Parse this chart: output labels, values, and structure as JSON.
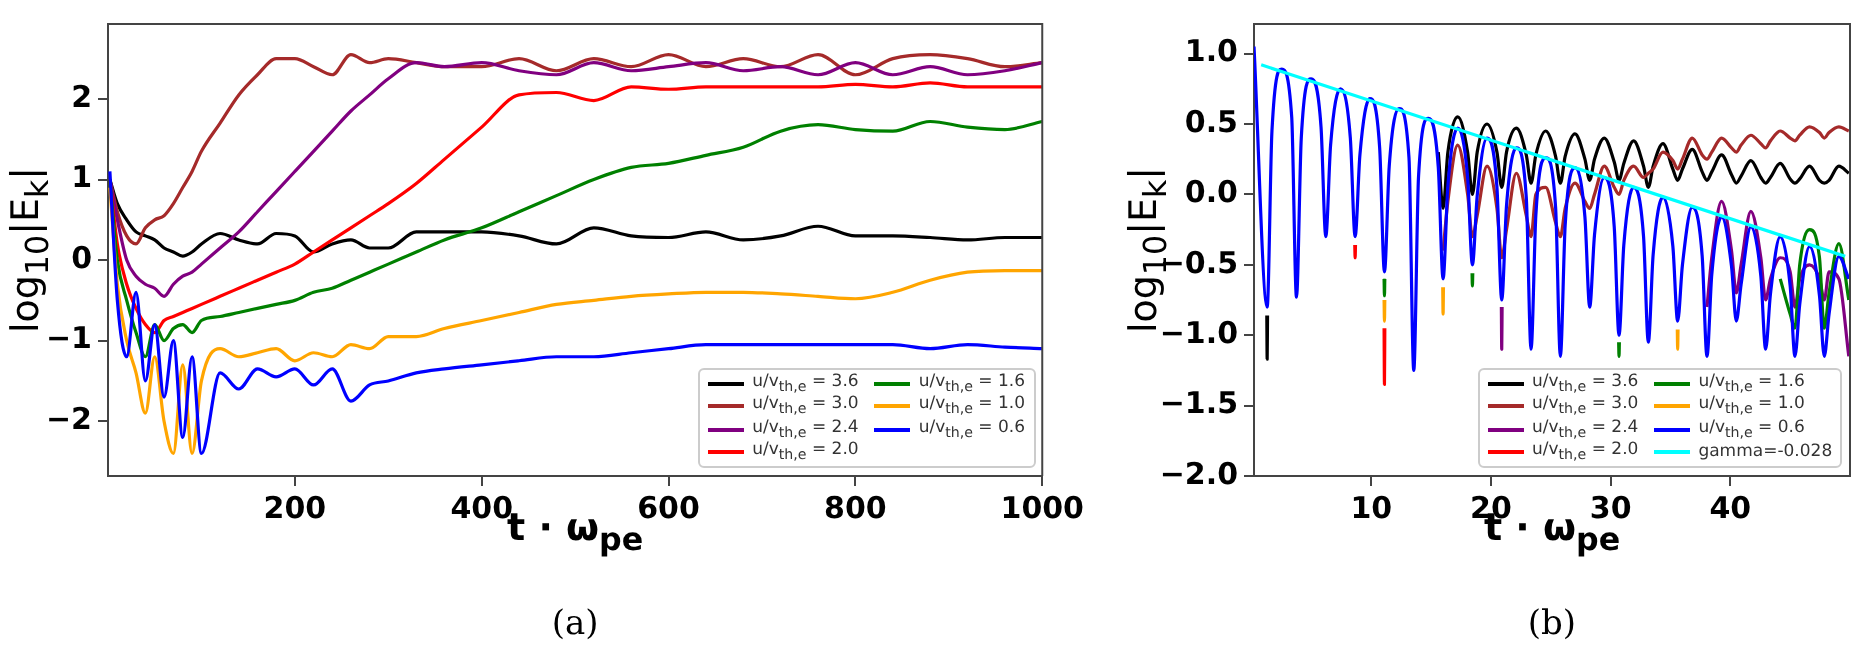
{
  "chart_data": [
    {
      "type": "line",
      "xlabel": "t · ω$_{pe}$",
      "ylabel": "log$_{10}$|E$_{k}$|",
      "annotations": [
        "(a)"
      ],
      "xlim": [
        0,
        1000
      ],
      "xticks": [
        200,
        400,
        600,
        800,
        1000
      ],
      "ylim": [
        -2.68,
        2.93
      ],
      "yticks": [
        -2,
        -1,
        0,
        1,
        2
      ],
      "grid": false,
      "legend": "bottom right",
      "x": [
        2,
        10,
        20,
        30,
        40,
        50,
        60,
        70,
        80,
        90,
        100,
        120,
        140,
        160,
        180,
        200,
        220,
        240,
        260,
        280,
        300,
        330,
        360,
        400,
        440,
        480,
        520,
        560,
        600,
        640,
        680,
        720,
        760,
        800,
        840,
        880,
        920,
        960,
        1000
      ],
      "series": [
        {
          "name": "u/v$_{th,e}$ = 3.6",
          "color": "#000000",
          "values": [
            1.0,
            0.7,
            0.5,
            0.35,
            0.3,
            0.25,
            0.15,
            0.1,
            0.05,
            0.1,
            0.2,
            0.33,
            0.25,
            0.2,
            0.33,
            0.3,
            0.1,
            0.2,
            0.25,
            0.15,
            0.15,
            0.35,
            0.35,
            0.35,
            0.3,
            0.2,
            0.4,
            0.3,
            0.28,
            0.35,
            0.25,
            0.3,
            0.42,
            0.3,
            0.3,
            0.28,
            0.25,
            0.28,
            0.28
          ]
        },
        {
          "name": "u/v$_{th,e}$ = 3.0",
          "color": "#a52a2a",
          "values": [
            1.0,
            0.6,
            0.3,
            0.2,
            0.4,
            0.5,
            0.55,
            0.7,
            0.9,
            1.1,
            1.35,
            1.7,
            2.05,
            2.3,
            2.5,
            2.5,
            2.4,
            2.3,
            2.55,
            2.45,
            2.5,
            2.45,
            2.4,
            2.4,
            2.5,
            2.35,
            2.5,
            2.4,
            2.55,
            2.4,
            2.5,
            2.4,
            2.55,
            2.3,
            2.5,
            2.55,
            2.5,
            2.4,
            2.45
          ]
        },
        {
          "name": "u/v$_{th,e}$ = 2.4",
          "color": "#800080",
          "values": [
            1.0,
            0.5,
            0.0,
            -0.2,
            -0.3,
            -0.35,
            -0.45,
            -0.3,
            -0.2,
            -0.15,
            -0.05,
            0.15,
            0.35,
            0.6,
            0.85,
            1.1,
            1.35,
            1.6,
            1.85,
            2.05,
            2.25,
            2.45,
            2.4,
            2.45,
            2.35,
            2.3,
            2.45,
            2.35,
            2.4,
            2.45,
            2.35,
            2.4,
            2.3,
            2.45,
            2.3,
            2.4,
            2.3,
            2.35,
            2.45
          ]
        },
        {
          "name": "u/v$_{th,e}$ = 2.0",
          "color": "#ff0000",
          "values": [
            1.0,
            0.2,
            -0.3,
            -0.6,
            -0.8,
            -0.9,
            -0.75,
            -0.7,
            -0.65,
            -0.6,
            -0.55,
            -0.45,
            -0.35,
            -0.25,
            -0.15,
            -0.05,
            0.1,
            0.25,
            0.4,
            0.55,
            0.7,
            0.95,
            1.25,
            1.65,
            2.05,
            2.08,
            1.98,
            2.15,
            2.12,
            2.15,
            2.15,
            2.15,
            2.15,
            2.18,
            2.15,
            2.2,
            2.15,
            2.15,
            2.15
          ]
        },
        {
          "name": "u/v$_{th,e}$ = 1.6",
          "color": "#008000",
          "values": [
            1.0,
            0.0,
            -0.5,
            -0.9,
            -1.2,
            -0.8,
            -1.0,
            -0.85,
            -0.8,
            -0.9,
            -0.75,
            -0.7,
            -0.65,
            -0.6,
            -0.55,
            -0.5,
            -0.4,
            -0.35,
            -0.25,
            -0.15,
            -0.05,
            0.1,
            0.25,
            0.4,
            0.6,
            0.8,
            1.0,
            1.15,
            1.2,
            1.3,
            1.4,
            1.6,
            1.68,
            1.62,
            1.6,
            1.72,
            1.65,
            1.62,
            1.72
          ]
        },
        {
          "name": "u/v$_{th,e}$ = 1.0",
          "color": "#ffa500",
          "values": [
            0.9,
            -0.3,
            -1.0,
            -1.4,
            -1.9,
            -1.2,
            -2.0,
            -2.4,
            -1.3,
            -2.4,
            -1.5,
            -1.1,
            -1.2,
            -1.15,
            -1.1,
            -1.25,
            -1.15,
            -1.2,
            -1.05,
            -1.1,
            -0.95,
            -0.95,
            -0.85,
            -0.75,
            -0.65,
            -0.55,
            -0.5,
            -0.45,
            -0.42,
            -0.4,
            -0.4,
            -0.42,
            -0.45,
            -0.48,
            -0.4,
            -0.25,
            -0.15,
            -0.13,
            -0.13
          ]
        },
        {
          "name": "u/v$_{th,e}$ = 0.6",
          "color": "#0000ff",
          "values": [
            1.1,
            -0.5,
            -1.2,
            -0.4,
            -1.5,
            -0.8,
            -1.7,
            -1.0,
            -2.2,
            -1.2,
            -2.4,
            -1.4,
            -1.6,
            -1.35,
            -1.45,
            -1.35,
            -1.55,
            -1.35,
            -1.75,
            -1.55,
            -1.5,
            -1.4,
            -1.35,
            -1.3,
            -1.25,
            -1.2,
            -1.2,
            -1.15,
            -1.1,
            -1.05,
            -1.05,
            -1.05,
            -1.05,
            -1.05,
            -1.05,
            -1.1,
            -1.05,
            -1.08,
            -1.1
          ]
        }
      ]
    },
    {
      "type": "line",
      "xlabel": "t · ω$_{pe}$",
      "ylabel": "log$_{10}$|E$_{k}$|",
      "annotations": [
        "(b)"
      ],
      "xlim": [
        0.2,
        50
      ],
      "xticks": [
        10,
        20,
        30,
        40
      ],
      "ylim": [
        -2,
        1.21
      ],
      "yticks": [
        {
          "value": -2,
          "label": "−2.0"
        },
        {
          "value": -1.5,
          "label": "−1.5"
        },
        {
          "value": -1,
          "label": "−1.0"
        },
        {
          "value": -0.5,
          "label": "−0.5"
        },
        {
          "value": 0,
          "label": "0.0"
        },
        {
          "value": 0.5,
          "label": "0.5"
        },
        {
          "value": 1,
          "label": "1.0"
        }
      ],
      "grid": false,
      "legend": "bottom right",
      "x": [
        0.2,
        1.3,
        1.7,
        2.52,
        3.35,
        3.75,
        4.15,
        4.97,
        5.8,
        6.2,
        6.6,
        7.42,
        8.25,
        8.65,
        9.05,
        9.87,
        10.7,
        11.1,
        11.5,
        12.32,
        13.15,
        13.55,
        13.95,
        14.77,
        15.6,
        16,
        16.4,
        17.22,
        18.05,
        18.45,
        18.85,
        19.67,
        20.5,
        20.9,
        21.3,
        22.12,
        22.95,
        23.35,
        23.75,
        24.57,
        25.4,
        25.8,
        26.2,
        27.02,
        27.85,
        28.25,
        28.65,
        29.47,
        30.3,
        30.7,
        31.1,
        31.92,
        32.75,
        33.15,
        33.55,
        34.37,
        35.2,
        35.6,
        36,
        36.82,
        37.65,
        38.05,
        38.45,
        39.27,
        40.1,
        40.5,
        40.9,
        41.72,
        42.55,
        42.95,
        43.35,
        44.17,
        45,
        45.4,
        45.8,
        46.62,
        47.45,
        47.85,
        48.25,
        49.07,
        49.9
      ],
      "series": [
        {
          "name": "u/v$_{th,e}$ = 3.6",
          "color": "#000000",
          "x": [
            1.27,
            1.3,
            1.33,
            1.36,
            15.6,
            16,
            16.4,
            17.22,
            18.05,
            18.45,
            18.85,
            19.67,
            20.5,
            20.9,
            21.3,
            22.12,
            22.95,
            23.35,
            23.75,
            24.57,
            25.4,
            25.8,
            26.2,
            27.02,
            27.85,
            28.25,
            28.65,
            29.47,
            30.3,
            30.7,
            31.1,
            31.92,
            32.75,
            33.15,
            33.55,
            34.37,
            35.2,
            35.6,
            36,
            36.82,
            37.65,
            38.05,
            38.45,
            39.27,
            40.1,
            40.5,
            40.9,
            41.72,
            42.55,
            42.95,
            43.35,
            44.17,
            45,
            45.4,
            45.8,
            46.62,
            47.45,
            47.85,
            48.25,
            49.07,
            49.9
          ],
          "values": [
            -0.86,
            -1.17,
            -0.86,
            null,
            0.3,
            -0.1,
            0.3,
            0.55,
            0.3,
            0,
            0.3,
            0.5,
            0.3,
            0.05,
            0.3,
            0.47,
            0.28,
            0.08,
            0.28,
            0.45,
            0.27,
            0.08,
            0.27,
            0.43,
            0.25,
            0.1,
            0.25,
            0.4,
            0.23,
            0.1,
            0.22,
            0.38,
            0.2,
            0.05,
            0.2,
            0.36,
            0.18,
            0.1,
            0.18,
            0.32,
            0.16,
            0.1,
            0.16,
            0.28,
            0.14,
            0.08,
            0.13,
            0.24,
            0.12,
            0.08,
            0.12,
            0.22,
            0.11,
            0.08,
            0.11,
            0.2,
            0.1,
            0.08,
            0.1,
            0.2,
            0.15
          ]
        },
        {
          "name": "u/v$_{th,e}$ = 3.0",
          "color": "#a52a2a",
          "x": [
            16,
            16.4,
            17.22,
            18.05,
            18.45,
            18.85,
            19.67,
            20.5,
            20.9,
            21.3,
            22.12,
            22.95,
            23.35,
            23.75,
            24.57,
            25.4,
            25.8,
            26.2,
            27.02,
            27.85,
            28.25,
            28.65,
            29.47,
            30.3,
            30.7,
            31.1,
            31.92,
            32.75,
            33.15,
            33.55,
            34.37,
            35.2,
            35.6,
            36,
            36.82,
            37.65,
            38.05,
            38.45,
            39.27,
            40.1,
            40.5,
            40.9,
            41.72,
            42.55,
            42.95,
            43.35,
            44.17,
            45,
            45.4,
            45.8,
            46.62,
            47.45,
            47.85,
            48.25,
            49.07,
            49.9
          ],
          "values": [
            -0.4,
            -0.05,
            0.35,
            0.0,
            -0.3,
            -0.15,
            0.2,
            -0.1,
            -0.45,
            -0.25,
            0.15,
            -0.15,
            -0.3,
            0.0,
            0.05,
            -0.2,
            -0.3,
            -0.1,
            0.08,
            -0.05,
            -0.1,
            0.0,
            0.2,
            0.05,
            0.0,
            0.1,
            0.2,
            0.12,
            0.15,
            0.18,
            0.3,
            0.24,
            0.18,
            0.25,
            0.4,
            0.28,
            0.25,
            0.3,
            0.4,
            0.33,
            0.3,
            0.35,
            0.42,
            0.36,
            0.33,
            0.38,
            0.45,
            0.4,
            0.38,
            0.42,
            0.48,
            0.44,
            0.4,
            0.44,
            0.48,
            0.45
          ]
        },
        {
          "name": "u/v$_{th,e}$ = 2.4",
          "color": "#800080",
          "x": [
            20.87,
            20.9,
            20.93,
            20.96,
            38.05,
            38.45,
            39.27,
            40.1,
            40.5,
            40.9,
            41.72,
            42.55,
            42.95,
            43.35,
            44.17,
            45,
            45.4,
            45.8,
            46.62,
            47.45,
            47.85,
            48.25,
            49.07,
            49.9
          ],
          "values": [
            -0.8,
            -1.1,
            -0.8,
            null,
            -0.8,
            -0.45,
            -0.05,
            -0.4,
            -0.7,
            -0.5,
            -0.12,
            -0.45,
            -0.75,
            -0.6,
            -0.45,
            -0.55,
            -0.8,
            -0.6,
            -0.5,
            -0.6,
            -0.75,
            -0.55,
            -0.6,
            -1.15
          ]
        },
        {
          "name": "u/v$_{th,e}$ = 2.0",
          "color": "#ff0000",
          "x": [
            8.62,
            8.65,
            8.68,
            8.71,
            11.07,
            11.1,
            11.13
          ],
          "values": [
            -0.36,
            -0.45,
            -0.36,
            null,
            -0.95,
            -1.35,
            -0.95
          ]
        },
        {
          "name": "u/v$_{th,e}$ = 1.6",
          "color": "#008000",
          "x": [
            11.07,
            11.1,
            11.13,
            11.16,
            18.42,
            18.45,
            18.48,
            18.51,
            30.67,
            30.7,
            30.73,
            30.76,
            44.17,
            45,
            45.4,
            45.8,
            46.62,
            47.45,
            47.85,
            48.25,
            49.07,
            49.9
          ],
          "values": [
            -0.6,
            -0.72,
            -0.6,
            null,
            -0.56,
            -0.65,
            -0.56,
            null,
            -1.05,
            -1.15,
            -1.05,
            null,
            -0.6,
            -0.85,
            -0.95,
            -0.5,
            -0.25,
            -0.45,
            -0.95,
            -0.7,
            -0.35,
            -0.75
          ]
        },
        {
          "name": "u/v$_{th,e}$ = 1.0",
          "color": "#ffa500",
          "x": [
            11.07,
            11.1,
            11.13,
            11.16,
            15.97,
            16,
            16.03,
            16.06,
            35.57,
            35.6,
            35.63
          ],
          "values": [
            -0.75,
            -0.9,
            -0.75,
            null,
            -0.66,
            -0.85,
            -0.66,
            null,
            -0.96,
            -1.1,
            -0.96
          ]
        },
        {
          "name": "u/v$_{th,e}$ = 0.6",
          "color": "#0000ff",
          "values": [
            1.05,
            -0.8,
            0.45,
            0.89,
            0.55,
            -0.73,
            0.4,
            0.82,
            0.48,
            -0.3,
            0.35,
            0.75,
            0.4,
            -0.3,
            0.28,
            0.68,
            0.33,
            -0.55,
            0.2,
            0.61,
            0.26,
            -1.25,
            0.13,
            0.54,
            0.19,
            -0.6,
            0.06,
            0.47,
            0.12,
            -0.5,
            -0.01,
            0.4,
            0.05,
            -0.75,
            -0.08,
            0.33,
            -0.02,
            -1.1,
            -0.15,
            0.26,
            -0.09,
            -1.15,
            -0.22,
            0.19,
            -0.16,
            -0.8,
            -0.29,
            0.12,
            -0.23,
            -1,
            -0.36,
            0.05,
            -0.3,
            -1.05,
            -0.43,
            -0.02,
            -0.37,
            -0.9,
            -0.5,
            -0.09,
            -0.44,
            -1.15,
            -0.57,
            -0.16,
            -0.51,
            -0.9,
            -0.64,
            -0.23,
            -0.58,
            -1.1,
            -0.71,
            -0.3,
            -0.65,
            -1.15,
            -0.78,
            -0.37,
            -0.72,
            -1.15,
            -0.85,
            -0.44,
            -0.6
          ]
        },
        {
          "name": "gamma=-0.028",
          "color": "#00ffff",
          "x": [
            0.8,
            49.6
          ],
          "values": [
            0.92,
            -0.44
          ]
        }
      ]
    }
  ]
}
